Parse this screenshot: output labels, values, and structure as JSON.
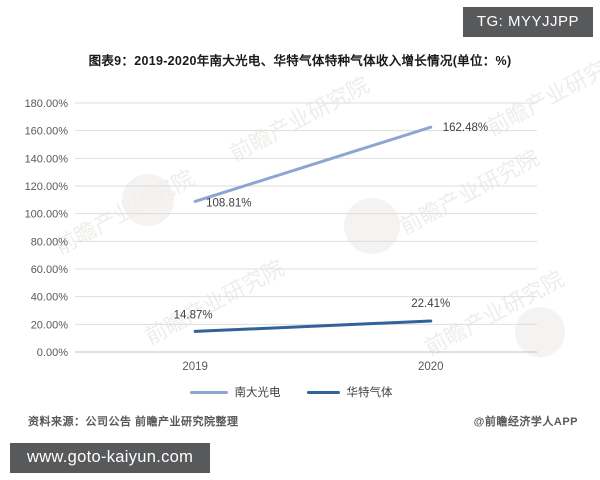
{
  "badges": {
    "tg": "TG: MYYJJPP",
    "site": "www.goto-kaiyun.com"
  },
  "title": "图表9：2019-2020年南大光电、华特气体特种气体收入增长情况(单位：%)",
  "chart_data": {
    "type": "line",
    "categories": [
      "2019",
      "2020"
    ],
    "series": [
      {
        "name": "南大光电",
        "values": [
          108.81,
          162.48
        ],
        "labels": [
          "108.81%",
          "162.48%"
        ],
        "color": "#8EA5D3"
      },
      {
        "name": "华特气体",
        "values": [
          14.87,
          22.41
        ],
        "labels": [
          "14.87%",
          "22.41%"
        ],
        "color": "#2F6399"
      }
    ],
    "title": "图表9：2019-2020年南大光电、华特气体特种气体收入增长情况(单位：%)",
    "xlabel": "",
    "ylabel": "",
    "ylim": [
      0,
      180
    ],
    "ytick_step": 20,
    "yticks": [
      "180.00%",
      "160.00%",
      "140.00%",
      "120.00%",
      "100.00%",
      "80.00%",
      "60.00%",
      "40.00%",
      "20.00%",
      "0.00%"
    ],
    "grid": true,
    "legend_position": "bottom"
  },
  "footer": {
    "source": "资料来源：公司公告 前瞻产业研究院整理",
    "credit": "@前瞻经济学人APP"
  },
  "watermark": {
    "text": "前瞻产业研究院"
  }
}
